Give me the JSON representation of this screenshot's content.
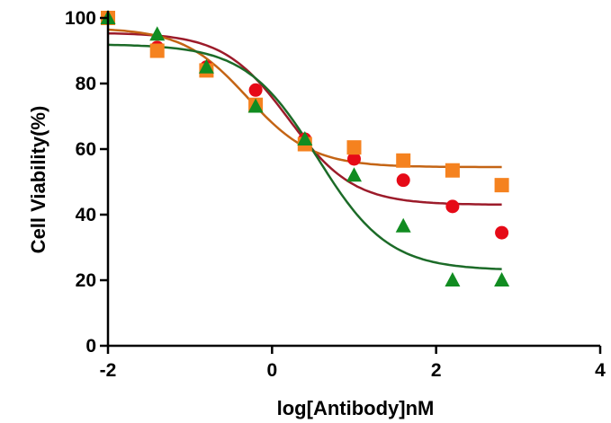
{
  "chart_data": {
    "type": "scatter",
    "title": "",
    "xlabel": "log[Antibody]nM",
    "ylabel": "Cell Viability(%)",
    "xlim": [
      -2,
      4
    ],
    "ylim": [
      0,
      100
    ],
    "x_ticks": [
      -2,
      0,
      2,
      4
    ],
    "y_ticks": [
      0,
      20,
      40,
      60,
      80,
      100
    ],
    "grid": false,
    "legend": "none",
    "series": [
      {
        "color": "#E60A17",
        "line_color": "#9C1B2A",
        "marker": "circle",
        "x": [
          -2,
          -1.4,
          -0.8,
          -0.2,
          0.4,
          1.0,
          1.6,
          2.2,
          2.8
        ],
        "y": [
          100,
          91,
          85,
          78,
          63,
          57,
          50.5,
          42.5,
          34.5
        ],
        "fit": {
          "bottom": 43,
          "top": 95.5,
          "logIC50": 0.2,
          "hill": 1.1
        }
      },
      {
        "color": "#F5821F",
        "line_color": "#C46414",
        "marker": "square",
        "x": [
          -2,
          -1.4,
          -0.8,
          -0.2,
          0.4,
          1.0,
          1.6,
          2.2,
          2.8
        ],
        "y": [
          100,
          90,
          84,
          73.5,
          61.5,
          60.5,
          56.5,
          53.5,
          49
        ],
        "fit": {
          "bottom": 54.5,
          "top": 97,
          "logIC50": -0.3,
          "hill": 1.1
        }
      },
      {
        "color": "#118C21",
        "line_color": "#1C6B28",
        "marker": "triangle",
        "x": [
          -2,
          -1.4,
          -0.8,
          -0.2,
          0.4,
          1.0,
          1.6,
          2.2,
          2.8
        ],
        "y": [
          100,
          95,
          85,
          73,
          63,
          52,
          36.5,
          20,
          20
        ],
        "fit": {
          "bottom": 23,
          "top": 92,
          "logIC50": 0.55,
          "hill": 1.0
        }
      }
    ]
  }
}
